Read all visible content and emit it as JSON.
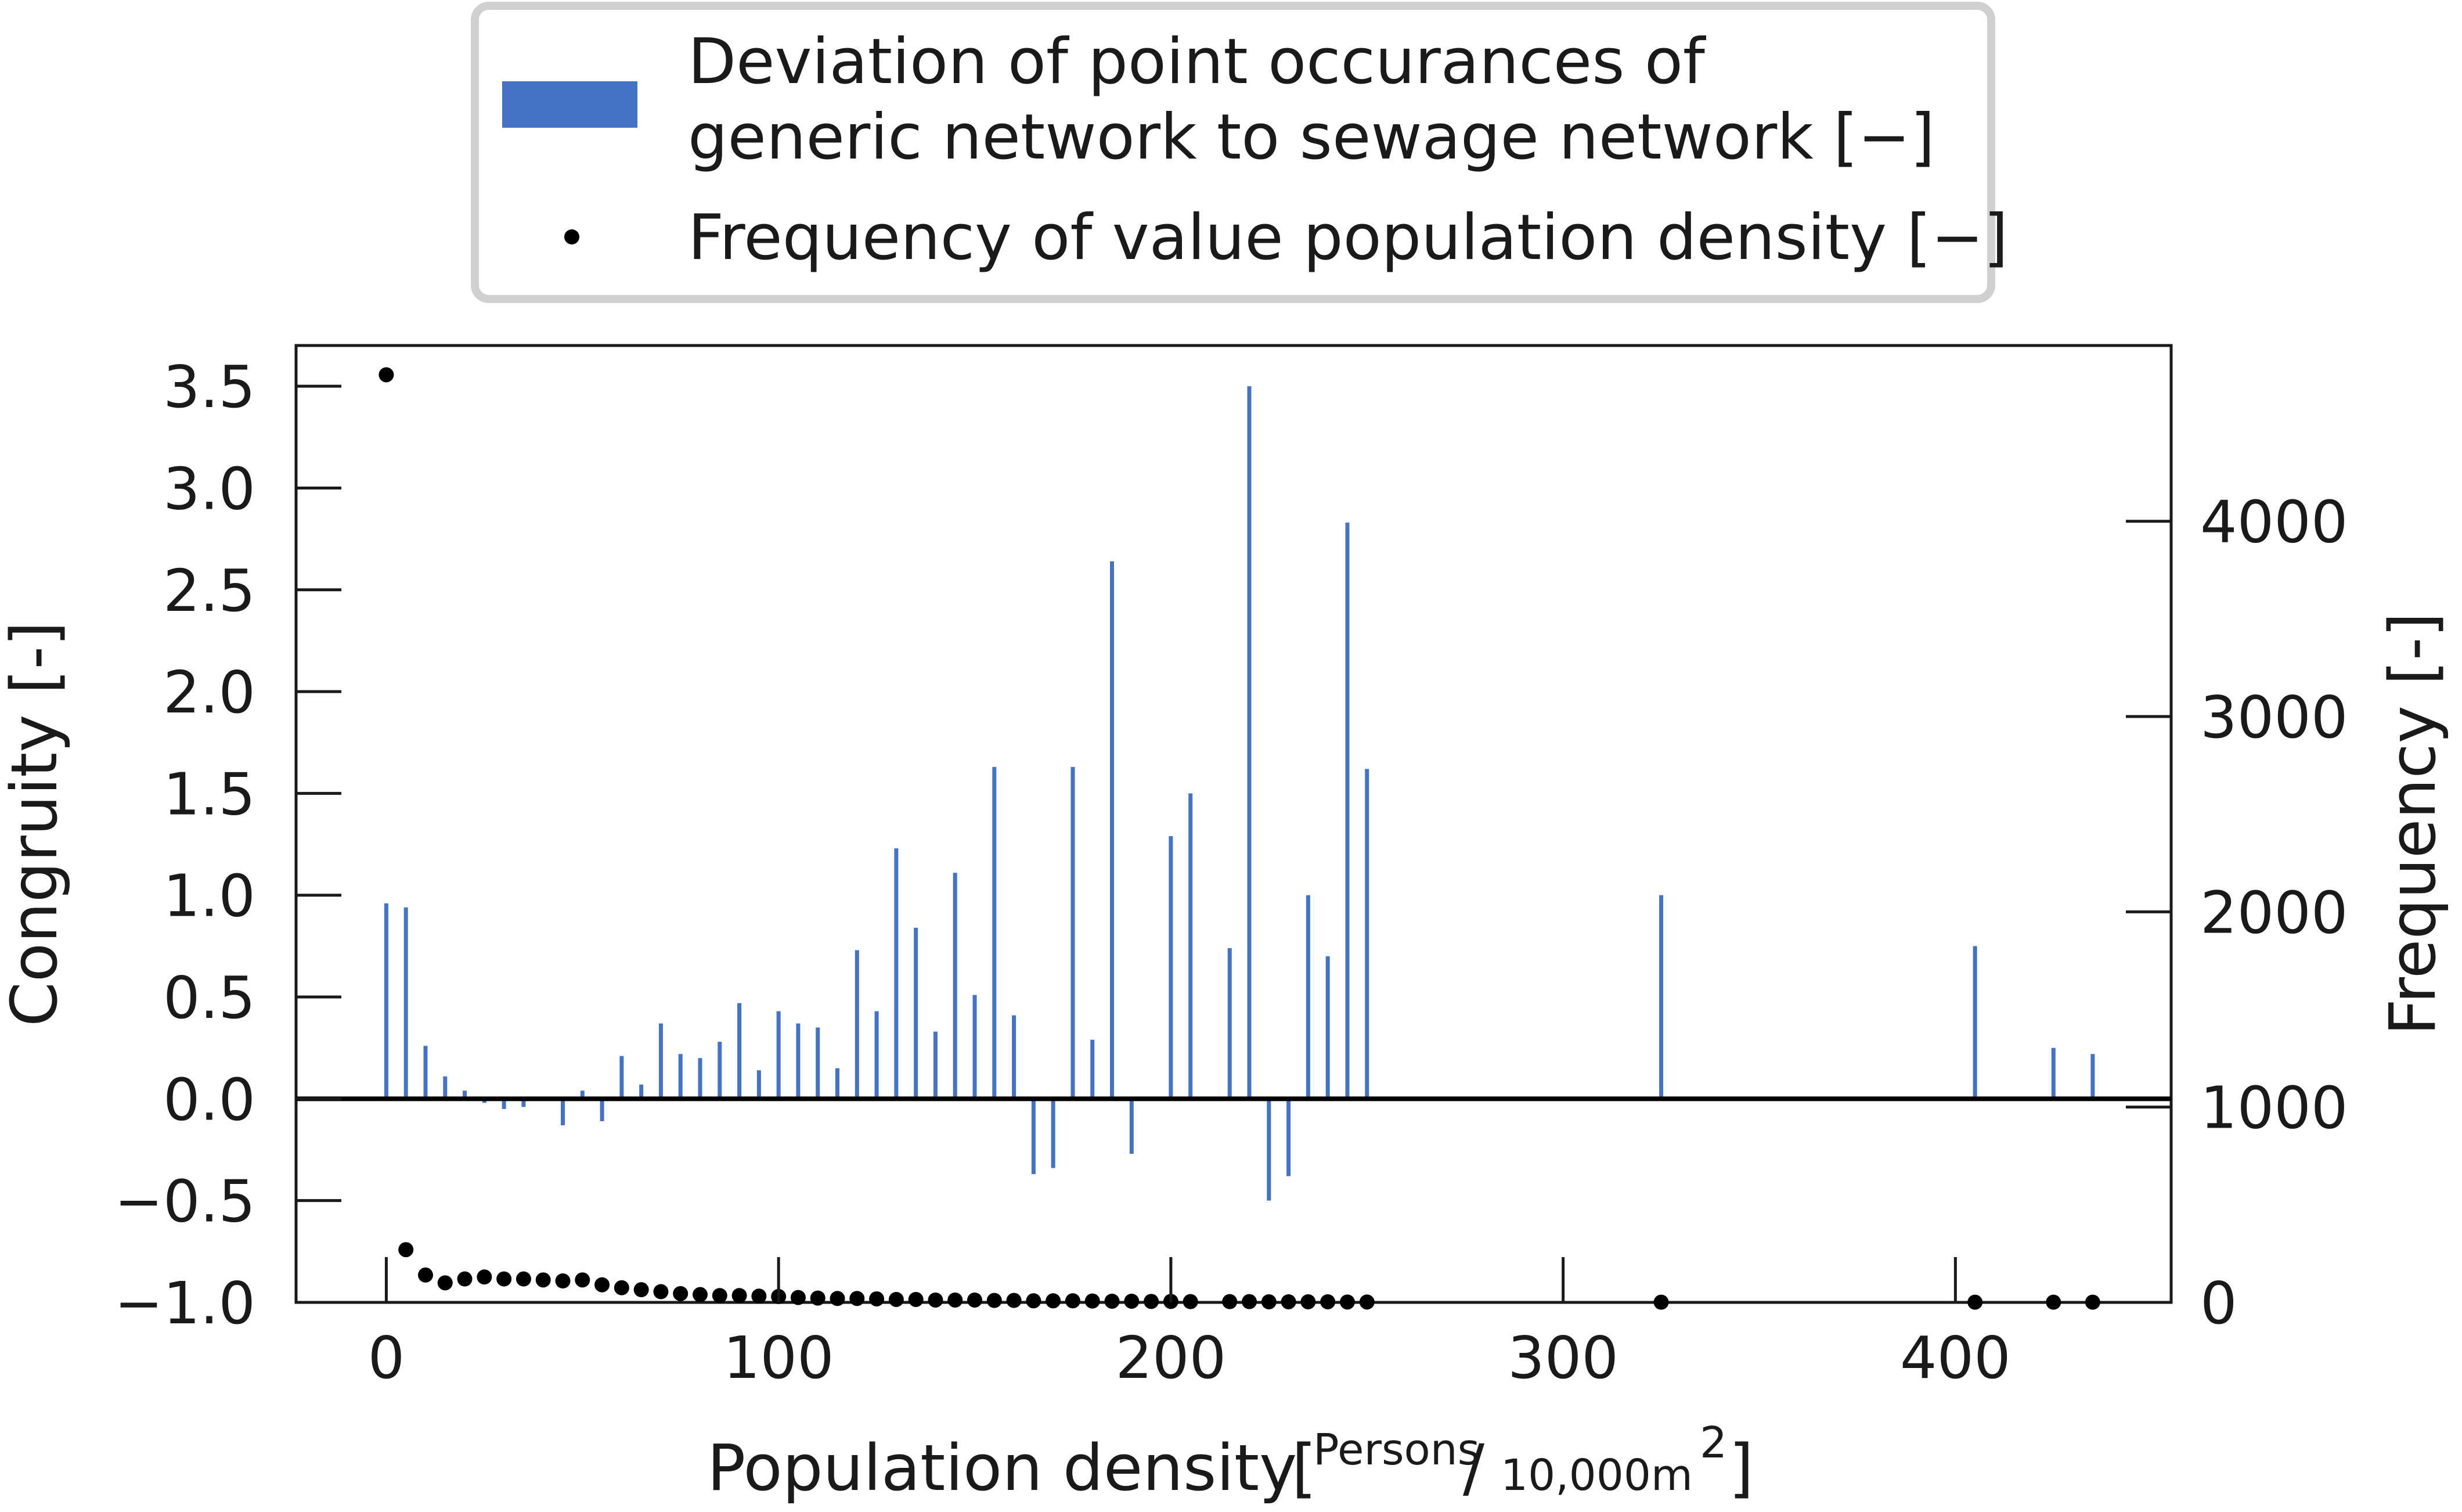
{
  "chart_data": {
    "type": "bar",
    "xlabel": "Population density",
    "xlabel_unit_numerator": "Persons",
    "xlabel_unit_denominator": "10,000m",
    "xlabel_unit_exponent": "2",
    "ylabel_left": "Congruity [-]",
    "ylabel_right": "Frequency [-]",
    "xlim": [
      -23,
      455
    ],
    "ylim_left": [
      -1.0,
      3.7
    ],
    "ylim_right": [
      0,
      4900
    ],
    "x_ticks": [
      0,
      100,
      200,
      300,
      400
    ],
    "x_tick_labels": [
      "0",
      "100",
      "200",
      "300",
      "400"
    ],
    "y_left_ticks": [
      -1.0,
      -0.5,
      0.0,
      0.5,
      1.0,
      1.5,
      2.0,
      2.5,
      3.0,
      3.5
    ],
    "y_left_tick_labels": [
      "−1.0",
      "−0.5",
      "0.0",
      "0.5",
      "1.0",
      "1.5",
      "2.0",
      "2.5",
      "3.0",
      "3.5"
    ],
    "y_right_ticks": [
      0,
      1000,
      2000,
      3000,
      4000
    ],
    "y_right_tick_labels": [
      "0",
      "1000",
      "2000",
      "3000",
      "4000"
    ],
    "legend_position": "top-center",
    "grid": false,
    "colors": {
      "bars": "#4472c4",
      "points": "#000000",
      "zero_line": "#000000"
    },
    "series": [
      {
        "name": "Deviation of point occurances of generic network to sewage network [−]",
        "legend_lines": [
          "Deviation of point occurances of",
          "generic network to sewage network [−]"
        ],
        "axis": "left",
        "style": "bar",
        "x": [
          0,
          5,
          10,
          15,
          20,
          25,
          30,
          35,
          45,
          50,
          55,
          60,
          65,
          70,
          75,
          80,
          85,
          90,
          95,
          100,
          105,
          110,
          115,
          120,
          125,
          130,
          135,
          140,
          145,
          150,
          155,
          160,
          165,
          170,
          175,
          180,
          185,
          190,
          200,
          205,
          215,
          220,
          225,
          230,
          235,
          240,
          245,
          250,
          325,
          405,
          425,
          435
        ],
        "values": [
          0.96,
          0.94,
          0.26,
          0.11,
          0.04,
          -0.02,
          -0.05,
          -0.04,
          -0.13,
          0.04,
          -0.11,
          0.21,
          0.07,
          0.37,
          0.22,
          0.2,
          0.28,
          0.47,
          0.14,
          0.43,
          0.37,
          0.35,
          0.15,
          0.73,
          0.43,
          1.23,
          0.84,
          0.33,
          1.11,
          0.51,
          1.63,
          0.41,
          -0.37,
          -0.34,
          1.63,
          0.29,
          2.64,
          -0.27,
          1.29,
          1.5,
          0.74,
          3.5,
          -0.5,
          -0.38,
          1.0,
          0.7,
          2.83,
          1.62,
          1.0,
          0.75,
          0.25,
          0.22
        ]
      },
      {
        "name": "Frequency of value population density [−]",
        "axis": "right",
        "style": "scatter",
        "x": [
          0,
          5,
          10,
          15,
          20,
          25,
          30,
          35,
          40,
          45,
          50,
          55,
          60,
          65,
          70,
          75,
          80,
          85,
          90,
          95,
          100,
          105,
          110,
          115,
          120,
          125,
          130,
          135,
          140,
          145,
          150,
          155,
          160,
          165,
          170,
          175,
          180,
          185,
          190,
          195,
          200,
          205,
          215,
          220,
          225,
          230,
          235,
          240,
          245,
          250,
          325,
          405,
          425,
          435
        ],
        "values": [
          4750,
          270,
          140,
          100,
          120,
          130,
          120,
          120,
          115,
          110,
          115,
          90,
          75,
          65,
          55,
          45,
          40,
          35,
          35,
          32,
          30,
          25,
          22,
          20,
          20,
          18,
          15,
          15,
          12,
          12,
          12,
          10,
          10,
          8,
          8,
          8,
          7,
          6,
          6,
          5,
          5,
          4,
          4,
          4,
          3,
          3,
          3,
          3,
          2,
          2,
          1,
          1,
          1,
          1
        ]
      }
    ]
  }
}
